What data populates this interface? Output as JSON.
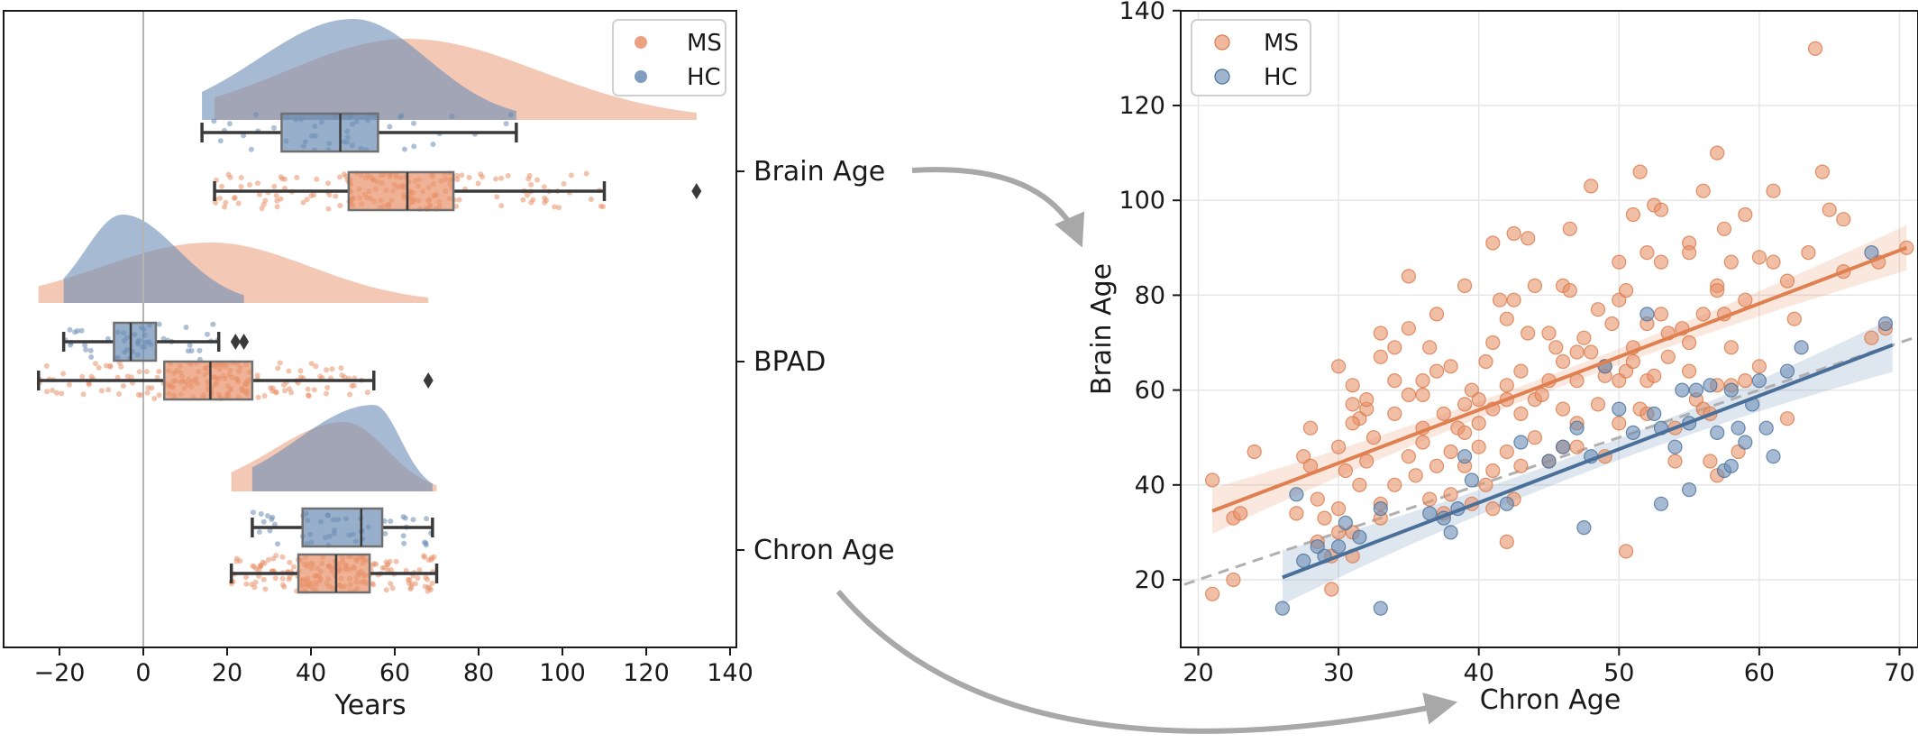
{
  "colors": {
    "ms": "#e8926a",
    "hc": "#6b8db5",
    "ms_line": "#e07f4f",
    "hc_line": "#4a6f98",
    "grid": "#e6e6e6",
    "identity": "#b0b0b0",
    "arrow": "#a8a8a8",
    "axis": "#1a1a1a",
    "box_line": "#3a3a3a"
  },
  "chart_data": [
    {
      "type": "box",
      "subtype": "raincloud",
      "orientation": "horizontal",
      "xlabel": "Years",
      "xlim": [
        -33,
        140
      ],
      "xticks": [
        -20,
        0,
        20,
        40,
        60,
        80,
        100,
        120,
        140
      ],
      "xtick_labels": [
        "−20",
        "0",
        "20",
        "40",
        "60",
        "80",
        "100",
        "120",
        "140"
      ],
      "reference_line_x": 0,
      "categories": [
        "Brain Age",
        "BPAD",
        "Chron Age"
      ],
      "legend": {
        "position": "top-right",
        "entries": [
          "MS",
          "HC"
        ]
      },
      "series": [
        {
          "name": "HC",
          "boxes": [
            {
              "category": "Brain Age",
              "whisker_low": 14,
              "q1": 33,
              "median": 47,
              "q3": 56,
              "whisker_high": 89,
              "outliers": [],
              "density_range": [
                14,
                89
              ],
              "density_peak": 50
            },
            {
              "category": "BPAD",
              "whisker_low": -19,
              "q1": -7,
              "median": -3,
              "q3": 3,
              "whisker_high": 18,
              "outliers": [
                22,
                24
              ],
              "density_range": [
                -19,
                24
              ],
              "density_peak": -5
            },
            {
              "category": "Chron Age",
              "whisker_low": 26,
              "q1": 38,
              "median": 52,
              "q3": 57,
              "whisker_high": 69,
              "outliers": [],
              "density_range": [
                26,
                69
              ],
              "density_peak": 55
            }
          ]
        },
        {
          "name": "MS",
          "boxes": [
            {
              "category": "Brain Age",
              "whisker_low": 17,
              "q1": 49,
              "median": 63,
              "q3": 74,
              "whisker_high": 110,
              "outliers": [
                132
              ],
              "density_range": [
                17,
                132
              ],
              "density_peak": 63
            },
            {
              "category": "BPAD",
              "whisker_low": -25,
              "q1": 5,
              "median": 16,
              "q3": 26,
              "whisker_high": 55,
              "outliers": [
                68
              ],
              "density_range": [
                -25,
                68
              ],
              "density_peak": 16
            },
            {
              "category": "Chron Age",
              "whisker_low": 21,
              "q1": 37,
              "median": 46,
              "q3": 54,
              "whisker_high": 70,
              "outliers": [],
              "density_range": [
                21,
                70
              ],
              "density_peak": 48
            }
          ]
        }
      ]
    },
    {
      "type": "scatter",
      "xlabel": "Chron Age",
      "ylabel": "Brain Age",
      "xlim": [
        19,
        71.5
      ],
      "ylim": [
        7,
        140
      ],
      "xticks": [
        20,
        30,
        40,
        50,
        60,
        70
      ],
      "yticks": [
        20,
        40,
        60,
        80,
        100,
        120,
        140
      ],
      "grid": true,
      "legend": {
        "position": "top-left",
        "entries": [
          "MS",
          "HC"
        ]
      },
      "identity_line": {
        "style": "dashed",
        "x": [
          19,
          71.5
        ],
        "y": [
          19,
          71.5
        ]
      },
      "series": [
        {
          "name": "MS",
          "fit_line": {
            "x": [
              21,
              70.5
            ],
            "y": [
              34.5,
              90
            ]
          },
          "points": [
            [
              21,
              17
            ],
            [
              21,
              41
            ],
            [
              22.5,
              33
            ],
            [
              22.5,
              20
            ],
            [
              23,
              34
            ],
            [
              24,
              47
            ],
            [
              27,
              34
            ],
            [
              27.5,
              46
            ],
            [
              28,
              44
            ],
            [
              28,
              52
            ],
            [
              28.5,
              28
            ],
            [
              28.5,
              37
            ],
            [
              29,
              33
            ],
            [
              29.5,
              25
            ],
            [
              29.5,
              18
            ],
            [
              30,
              30
            ],
            [
              30,
              35
            ],
            [
              30,
              48
            ],
            [
              30,
              65
            ],
            [
              30.5,
              43
            ],
            [
              31,
              25
            ],
            [
              31,
              30
            ],
            [
              31,
              57
            ],
            [
              31,
              61
            ],
            [
              31.5,
              54
            ],
            [
              31,
              53
            ],
            [
              31.5,
              40
            ],
            [
              32,
              56
            ],
            [
              32,
              45
            ],
            [
              32,
              58
            ],
            [
              32.5,
              50
            ],
            [
              33,
              33
            ],
            [
              33,
              36
            ],
            [
              33,
              67
            ],
            [
              33,
              72
            ],
            [
              34,
              40
            ],
            [
              34,
              55
            ],
            [
              34,
              62
            ],
            [
              34,
              69
            ],
            [
              35,
              46
            ],
            [
              35,
              59
            ],
            [
              35,
              84
            ],
            [
              35,
              73
            ],
            [
              35.5,
              42
            ],
            [
              36,
              49
            ],
            [
              36,
              52
            ],
            [
              36,
              59
            ],
            [
              36,
              62
            ],
            [
              36.5,
              37
            ],
            [
              36.5,
              69
            ],
            [
              37,
              44
            ],
            [
              37,
              64
            ],
            [
              37,
              76
            ],
            [
              37.5,
              55
            ],
            [
              37.5,
              34
            ],
            [
              38,
              65
            ],
            [
              38,
              47
            ],
            [
              38,
              38
            ],
            [
              38.5,
              52
            ],
            [
              39,
              57
            ],
            [
              39,
              51
            ],
            [
              39,
              44
            ],
            [
              39,
              82
            ],
            [
              39.5,
              60
            ],
            [
              39.5,
              36
            ],
            [
              40,
              48
            ],
            [
              40,
              58
            ],
            [
              40,
              53
            ],
            [
              40.5,
              66
            ],
            [
              40.5,
              40
            ],
            [
              41,
              56
            ],
            [
              41,
              70
            ],
            [
              41,
              35
            ],
            [
              41,
              91
            ],
            [
              41,
              43
            ],
            [
              41.5,
              79
            ],
            [
              42,
              47
            ],
            [
              42,
              61
            ],
            [
              42,
              75
            ],
            [
              42,
              28
            ],
            [
              42,
              58
            ],
            [
              42.5,
              93
            ],
            [
              42.5,
              79
            ],
            [
              42.5,
              37
            ],
            [
              43,
              44
            ],
            [
              43,
              55
            ],
            [
              43,
              64
            ],
            [
              43.5,
              72
            ],
            [
              43.5,
              92
            ],
            [
              44,
              58
            ],
            [
              44,
              50
            ],
            [
              44,
              82
            ],
            [
              44.5,
              59
            ],
            [
              45,
              62
            ],
            [
              45,
              72
            ],
            [
              45,
              45
            ],
            [
              45.5,
              69
            ],
            [
              46,
              66
            ],
            [
              46,
              48
            ],
            [
              46,
              56
            ],
            [
              46,
              82
            ],
            [
              46.5,
              81
            ],
            [
              46.5,
              94
            ],
            [
              47,
              68
            ],
            [
              47,
              62
            ],
            [
              47,
              53
            ],
            [
              47,
              48
            ],
            [
              47.5,
              71
            ],
            [
              48,
              103
            ],
            [
              48,
              68
            ],
            [
              48.5,
              57
            ],
            [
              48.5,
              77
            ],
            [
              49,
              46
            ],
            [
              49,
              65
            ],
            [
              49,
              63
            ],
            [
              49.5,
              74
            ],
            [
              50,
              53
            ],
            [
              50,
              62
            ],
            [
              50,
              79
            ],
            [
              50,
              87
            ],
            [
              50.5,
              64
            ],
            [
              50.5,
              26
            ],
            [
              50.5,
              81
            ],
            [
              51,
              69
            ],
            [
              51,
              97
            ],
            [
              51,
              66
            ],
            [
              51.5,
              106
            ],
            [
              51.5,
              56
            ],
            [
              52,
              62
            ],
            [
              52,
              74
            ],
            [
              52,
              89
            ],
            [
              52,
              55
            ],
            [
              52.5,
              99
            ],
            [
              52.5,
              63
            ],
            [
              53,
              87
            ],
            [
              53,
              76
            ],
            [
              53,
              98
            ],
            [
              53.5,
              72
            ],
            [
              53.5,
              67
            ],
            [
              54,
              52
            ],
            [
              54,
              45
            ],
            [
              54.5,
              73
            ],
            [
              55,
              91
            ],
            [
              55,
              70
            ],
            [
              55,
              64
            ],
            [
              55,
              89
            ],
            [
              55.5,
              58
            ],
            [
              56,
              102
            ],
            [
              56,
              56
            ],
            [
              56,
              76
            ],
            [
              56.5,
              55
            ],
            [
              56.5,
              45
            ],
            [
              57,
              82
            ],
            [
              57,
              110
            ],
            [
              57,
              81
            ],
            [
              57,
              42
            ],
            [
              57,
              61
            ],
            [
              57.5,
              94
            ],
            [
              57.5,
              76
            ],
            [
              58,
              69
            ],
            [
              58,
              61
            ],
            [
              58,
              87
            ],
            [
              58.5,
              47
            ],
            [
              59,
              62
            ],
            [
              59,
              97
            ],
            [
              59,
              79
            ],
            [
              60,
              88
            ],
            [
              60,
              65
            ],
            [
              61,
              87
            ],
            [
              61,
              102
            ],
            [
              62,
              83
            ],
            [
              62,
              54
            ],
            [
              62.5,
              75
            ],
            [
              63.5,
              89
            ],
            [
              64,
              132
            ],
            [
              64.5,
              106
            ],
            [
              65,
              98
            ],
            [
              66,
              85
            ],
            [
              66,
              96
            ],
            [
              68,
              71
            ],
            [
              68.5,
              87
            ],
            [
              69,
              73
            ],
            [
              70.5,
              90
            ]
          ]
        },
        {
          "name": "HC",
          "fit_line": {
            "x": [
              26,
              69.5
            ],
            "y": [
              20.5,
              69.5
            ]
          },
          "points": [
            [
              26,
              14
            ],
            [
              27,
              38
            ],
            [
              27.5,
              24
            ],
            [
              28.5,
              27
            ],
            [
              29,
              25
            ],
            [
              30,
              27
            ],
            [
              30.5,
              32
            ],
            [
              31.5,
              29
            ],
            [
              33,
              14
            ],
            [
              33,
              35
            ],
            [
              36.5,
              34
            ],
            [
              37.5,
              33
            ],
            [
              38,
              30
            ],
            [
              38.5,
              35
            ],
            [
              39,
              46
            ],
            [
              39.5,
              41
            ],
            [
              42,
              36
            ],
            [
              43,
              49
            ],
            [
              45,
              45
            ],
            [
              46,
              48
            ],
            [
              47,
              52
            ],
            [
              47.5,
              31
            ],
            [
              48,
              46
            ],
            [
              49,
              65
            ],
            [
              50,
              56
            ],
            [
              51,
              51
            ],
            [
              52,
              76
            ],
            [
              52.5,
              55
            ],
            [
              53,
              52
            ],
            [
              53,
              36
            ],
            [
              54,
              48
            ],
            [
              54.5,
              60
            ],
            [
              55,
              39
            ],
            [
              55,
              53
            ],
            [
              55.5,
              60
            ],
            [
              56.5,
              61
            ],
            [
              57,
              51
            ],
            [
              57.5,
              43
            ],
            [
              58,
              60
            ],
            [
              58,
              44
            ],
            [
              58.5,
              52
            ],
            [
              59,
              49
            ],
            [
              59.5,
              57
            ],
            [
              60,
              62
            ],
            [
              60.5,
              52
            ],
            [
              61,
              46
            ],
            [
              62,
              64
            ],
            [
              63,
              69
            ],
            [
              68,
              89
            ],
            [
              69,
              74
            ]
          ]
        }
      ]
    }
  ]
}
